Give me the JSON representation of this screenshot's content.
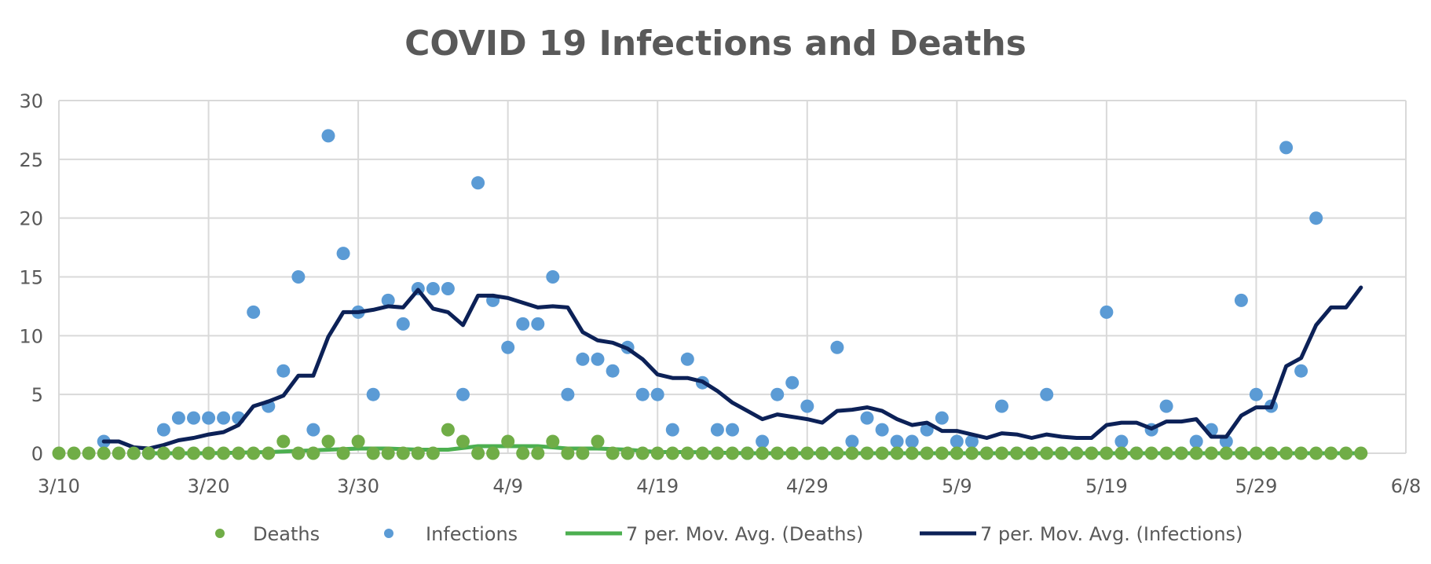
{
  "chart_data": {
    "type": "scatter",
    "title": "COVID 19 Infections and Deaths",
    "xlabel": "",
    "ylabel": "",
    "x_axis": {
      "unit": "day",
      "min": "3/10",
      "max": "6/8",
      "ticks": [
        "3/10",
        "3/20",
        "3/30",
        "4/9",
        "4/19",
        "4/29",
        "5/9",
        "5/19",
        "5/29",
        "6/8"
      ]
    },
    "y_axis": {
      "min": 0,
      "max": 30,
      "ticks": [
        "0",
        "5",
        "10",
        "15",
        "20",
        "25",
        "30"
      ]
    },
    "grid": true,
    "legend_position": "bottom",
    "colors": {
      "deaths": "#70ad47",
      "infections": "#5b9bd5",
      "deaths_avg": "#4caf50",
      "infections_avg": "#0c2157"
    },
    "series": [
      {
        "name": "Deaths",
        "kind": "scatter",
        "points": [
          [
            "3/10",
            0
          ],
          [
            "3/11",
            0
          ],
          [
            "3/12",
            0
          ],
          [
            "3/13",
            0
          ],
          [
            "3/14",
            0
          ],
          [
            "3/15",
            0
          ],
          [
            "3/16",
            0
          ],
          [
            "3/17",
            0
          ],
          [
            "3/18",
            0
          ],
          [
            "3/19",
            0
          ],
          [
            "3/20",
            0
          ],
          [
            "3/21",
            0
          ],
          [
            "3/22",
            0
          ],
          [
            "3/23",
            0
          ],
          [
            "3/24",
            0
          ],
          [
            "3/25",
            1
          ],
          [
            "3/26",
            0
          ],
          [
            "3/27",
            0
          ],
          [
            "3/28",
            1
          ],
          [
            "3/29",
            0
          ],
          [
            "3/30",
            1
          ],
          [
            "3/31",
            0
          ],
          [
            "4/1",
            0
          ],
          [
            "4/2",
            0
          ],
          [
            "4/3",
            0
          ],
          [
            "4/4",
            0
          ],
          [
            "4/5",
            2
          ],
          [
            "4/6",
            1
          ],
          [
            "4/7",
            0
          ],
          [
            "4/8",
            0
          ],
          [
            "4/9",
            1
          ],
          [
            "4/10",
            0
          ],
          [
            "4/11",
            0
          ],
          [
            "4/12",
            1
          ],
          [
            "4/13",
            0
          ],
          [
            "4/14",
            0
          ],
          [
            "4/15",
            1
          ],
          [
            "4/16",
            0
          ],
          [
            "4/17",
            0
          ],
          [
            "4/18",
            0
          ],
          [
            "4/19",
            0
          ],
          [
            "4/20",
            0
          ],
          [
            "4/21",
            0
          ],
          [
            "4/22",
            0
          ],
          [
            "4/23",
            0
          ],
          [
            "4/24",
            0
          ],
          [
            "4/25",
            0
          ],
          [
            "4/26",
            0
          ],
          [
            "4/27",
            0
          ],
          [
            "4/28",
            0
          ],
          [
            "4/29",
            0
          ],
          [
            "4/30",
            0
          ],
          [
            "5/1",
            0
          ],
          [
            "5/2",
            0
          ],
          [
            "5/3",
            0
          ],
          [
            "5/4",
            0
          ],
          [
            "5/5",
            0
          ],
          [
            "5/6",
            0
          ],
          [
            "5/7",
            0
          ],
          [
            "5/8",
            0
          ],
          [
            "5/9",
            0
          ],
          [
            "5/10",
            0
          ],
          [
            "5/11",
            0
          ],
          [
            "5/12",
            0
          ],
          [
            "5/13",
            0
          ],
          [
            "5/14",
            0
          ],
          [
            "5/15",
            0
          ],
          [
            "5/16",
            0
          ],
          [
            "5/17",
            0
          ],
          [
            "5/18",
            0
          ],
          [
            "5/19",
            0
          ],
          [
            "5/20",
            0
          ],
          [
            "5/21",
            0
          ],
          [
            "5/22",
            0
          ],
          [
            "5/23",
            0
          ],
          [
            "5/24",
            0
          ],
          [
            "5/25",
            0
          ],
          [
            "5/26",
            0
          ],
          [
            "5/27",
            0
          ],
          [
            "5/28",
            0
          ],
          [
            "5/29",
            0
          ],
          [
            "5/30",
            0
          ],
          [
            "5/31",
            0
          ],
          [
            "6/1",
            0
          ],
          [
            "6/2",
            0
          ],
          [
            "6/3",
            0
          ],
          [
            "6/4",
            0
          ],
          [
            "6/5",
            0
          ]
        ]
      },
      {
        "name": "Infections",
        "kind": "scatter",
        "points": [
          [
            "3/13",
            1
          ],
          [
            "3/15",
            0
          ],
          [
            "3/16",
            0
          ],
          [
            "3/17",
            2
          ],
          [
            "3/18",
            3
          ],
          [
            "3/19",
            3
          ],
          [
            "3/20",
            3
          ],
          [
            "3/21",
            3
          ],
          [
            "3/22",
            3
          ],
          [
            "3/23",
            12
          ],
          [
            "3/24",
            4
          ],
          [
            "3/25",
            7
          ],
          [
            "3/26",
            15
          ],
          [
            "3/27",
            2
          ],
          [
            "3/28",
            27
          ],
          [
            "3/29",
            17
          ],
          [
            "3/30",
            12
          ],
          [
            "3/31",
            5
          ],
          [
            "4/1",
            13
          ],
          [
            "4/2",
            11
          ],
          [
            "4/3",
            14
          ],
          [
            "4/4",
            14
          ],
          [
            "4/5",
            14
          ],
          [
            "4/6",
            5
          ],
          [
            "4/7",
            23
          ],
          [
            "4/8",
            13
          ],
          [
            "4/9",
            9
          ],
          [
            "4/10",
            11
          ],
          [
            "4/11",
            11
          ],
          [
            "4/12",
            15
          ],
          [
            "4/13",
            5
          ],
          [
            "4/14",
            8
          ],
          [
            "4/15",
            8
          ],
          [
            "4/16",
            7
          ],
          [
            "4/17",
            9
          ],
          [
            "4/18",
            5
          ],
          [
            "4/19",
            5
          ],
          [
            "4/20",
            2
          ],
          [
            "4/21",
            8
          ],
          [
            "4/22",
            6
          ],
          [
            "4/23",
            2
          ],
          [
            "4/24",
            2
          ],
          [
            "4/25",
            0
          ],
          [
            "4/26",
            1
          ],
          [
            "4/27",
            5
          ],
          [
            "4/28",
            6
          ],
          [
            "4/29",
            4
          ],
          [
            "4/30",
            0
          ],
          [
            "5/1",
            9
          ],
          [
            "5/2",
            1
          ],
          [
            "5/3",
            3
          ],
          [
            "5/4",
            2
          ],
          [
            "5/5",
            1
          ],
          [
            "5/6",
            1
          ],
          [
            "5/7",
            2
          ],
          [
            "5/8",
            3
          ],
          [
            "5/9",
            1
          ],
          [
            "5/10",
            1
          ],
          [
            "5/11",
            0
          ],
          [
            "5/12",
            4
          ],
          [
            "5/13",
            0
          ],
          [
            "5/14",
            0
          ],
          [
            "5/15",
            5
          ],
          [
            "5/16",
            0
          ],
          [
            "5/17",
            0
          ],
          [
            "5/18",
            0
          ],
          [
            "5/19",
            12
          ],
          [
            "5/20",
            1
          ],
          [
            "5/21",
            0
          ],
          [
            "5/22",
            2
          ],
          [
            "5/23",
            4
          ],
          [
            "5/24",
            0
          ],
          [
            "5/25",
            1
          ],
          [
            "5/26",
            2
          ],
          [
            "5/27",
            1
          ],
          [
            "5/28",
            13
          ],
          [
            "5/29",
            5
          ],
          [
            "5/30",
            4
          ],
          [
            "5/31",
            26
          ],
          [
            "6/1",
            7
          ],
          [
            "6/2",
            20
          ]
        ]
      },
      {
        "name": "7 per. Mov. Avg. (Deaths)",
        "kind": "line",
        "points": [
          [
            "3/16",
            0
          ],
          [
            "3/20",
            0
          ],
          [
            "3/24",
            0.1
          ],
          [
            "3/28",
            0.3
          ],
          [
            "3/30",
            0.4
          ],
          [
            "4/1",
            0.4
          ],
          [
            "4/3",
            0.3
          ],
          [
            "4/5",
            0.3
          ],
          [
            "4/7",
            0.6
          ],
          [
            "4/9",
            0.6
          ],
          [
            "4/11",
            0.6
          ],
          [
            "4/13",
            0.4
          ],
          [
            "4/15",
            0.4
          ],
          [
            "4/17",
            0.3
          ],
          [
            "4/19",
            0.1
          ],
          [
            "4/21",
            0.1
          ],
          [
            "4/25",
            0
          ],
          [
            "5/5",
            0
          ],
          [
            "5/15",
            0
          ],
          [
            "5/25",
            0
          ],
          [
            "6/5",
            0
          ]
        ]
      },
      {
        "name": "7 per. Mov. Avg. (Infections)",
        "kind": "line",
        "points": [
          [
            "3/13",
            1
          ],
          [
            "3/14",
            1
          ],
          [
            "3/15",
            0.5
          ],
          [
            "3/16",
            0.4
          ],
          [
            "3/17",
            0.7
          ],
          [
            "3/18",
            1.1
          ],
          [
            "3/19",
            1.3
          ],
          [
            "3/20",
            1.6
          ],
          [
            "3/21",
            1.8
          ],
          [
            "3/22",
            2.4
          ],
          [
            "3/23",
            4
          ],
          [
            "3/24",
            4.4
          ],
          [
            "3/25",
            4.9
          ],
          [
            "3/26",
            6.6
          ],
          [
            "3/27",
            6.6
          ],
          [
            "3/28",
            9.9
          ],
          [
            "3/29",
            12
          ],
          [
            "3/30",
            12
          ],
          [
            "3/31",
            12.2
          ],
          [
            "4/1",
            12.5
          ],
          [
            "4/2",
            12.4
          ],
          [
            "4/3",
            13.9
          ],
          [
            "4/4",
            12.3
          ],
          [
            "4/5",
            12
          ],
          [
            "4/6",
            10.9
          ],
          [
            "4/7",
            13.4
          ],
          [
            "4/8",
            13.4
          ],
          [
            "4/9",
            13.2
          ],
          [
            "4/10",
            12.8
          ],
          [
            "4/11",
            12.4
          ],
          [
            "4/12",
            12.5
          ],
          [
            "4/13",
            12.4
          ],
          [
            "4/14",
            10.3
          ],
          [
            "4/15",
            9.6
          ],
          [
            "4/16",
            9.4
          ],
          [
            "4/17",
            8.9
          ],
          [
            "4/18",
            8
          ],
          [
            "4/19",
            6.7
          ],
          [
            "4/20",
            6.4
          ],
          [
            "4/21",
            6.4
          ],
          [
            "4/22",
            6.1
          ],
          [
            "4/23",
            5.3
          ],
          [
            "4/24",
            4.3
          ],
          [
            "4/25",
            3.6
          ],
          [
            "4/26",
            2.9
          ],
          [
            "4/27",
            3.3
          ],
          [
            "4/28",
            3.1
          ],
          [
            "4/29",
            2.9
          ],
          [
            "4/30",
            2.6
          ],
          [
            "5/1",
            3.6
          ],
          [
            "5/2",
            3.7
          ],
          [
            "5/3",
            3.9
          ],
          [
            "5/4",
            3.6
          ],
          [
            "5/5",
            2.9
          ],
          [
            "5/6",
            2.4
          ],
          [
            "5/7",
            2.6
          ],
          [
            "5/8",
            1.9
          ],
          [
            "5/9",
            1.9
          ],
          [
            "5/10",
            1.6
          ],
          [
            "5/11",
            1.3
          ],
          [
            "5/12",
            1.7
          ],
          [
            "5/13",
            1.6
          ],
          [
            "5/14",
            1.3
          ],
          [
            "5/15",
            1.6
          ],
          [
            "5/16",
            1.4
          ],
          [
            "5/17",
            1.3
          ],
          [
            "5/18",
            1.3
          ],
          [
            "5/19",
            2.4
          ],
          [
            "5/20",
            2.6
          ],
          [
            "5/21",
            2.6
          ],
          [
            "5/22",
            2.1
          ],
          [
            "5/23",
            2.7
          ],
          [
            "5/24",
            2.7
          ],
          [
            "5/25",
            2.9
          ],
          [
            "5/26",
            1.4
          ],
          [
            "5/27",
            1.4
          ],
          [
            "5/28",
            3.2
          ],
          [
            "5/29",
            3.9
          ],
          [
            "5/30",
            3.9
          ],
          [
            "5/31",
            7.4
          ],
          [
            "6/1",
            8.1
          ],
          [
            "6/2",
            10.9
          ],
          [
            "6/3",
            12.4
          ],
          [
            "6/4",
            12.4
          ],
          [
            "6/5",
            14.1
          ]
        ]
      }
    ]
  }
}
